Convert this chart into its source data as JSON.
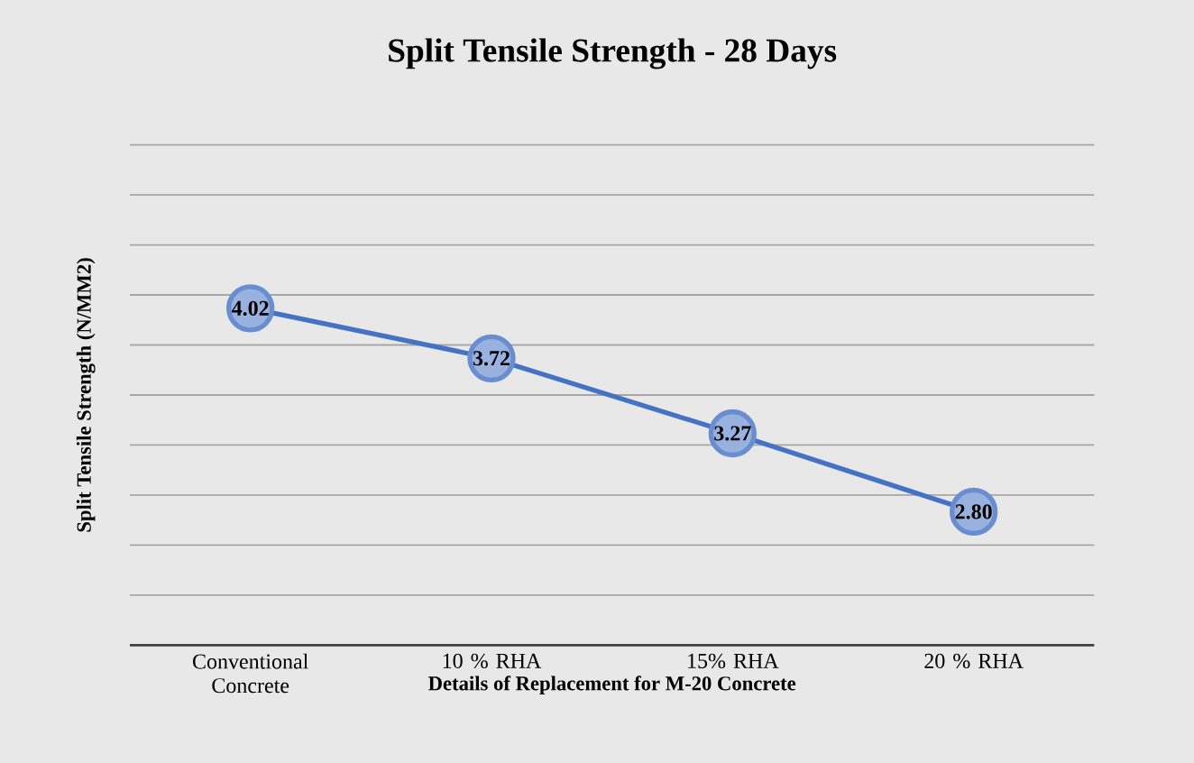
{
  "chart_data": {
    "type": "line",
    "title": "Split Tensile Strength - 28 Days",
    "xlabel": "Details of Replacement for M-20 Concrete",
    "ylabel": "Split Tensile Strength (N/MM2)",
    "categories": [
      "Conventional Concrete",
      "10 % RHA",
      "15% RHA",
      "20 % RHA"
    ],
    "values": [
      4.02,
      3.72,
      3.27,
      2.8
    ],
    "value_labels": [
      "4.02",
      "3.72",
      "3.27",
      "2.80"
    ],
    "color": "#4472c4",
    "marker": "circle",
    "ylim": [
      2,
      5
    ],
    "yticks": [
      {
        "value": 2.3,
        "label": null
      },
      {
        "value": 2.6,
        "label": null
      },
      {
        "value": 2.9,
        "label": null
      },
      {
        "value": 3.2,
        "label": null
      },
      {
        "value": 3.5,
        "label": null
      },
      {
        "value": 3.8,
        "label": null
      },
      {
        "value": 4.1,
        "label": null
      },
      {
        "value": 4.4,
        "label": null
      },
      {
        "value": 4.7,
        "label": null
      },
      {
        "value": 5.0,
        "label": null
      }
    ],
    "grid": "y",
    "tick_labels": "x"
  }
}
